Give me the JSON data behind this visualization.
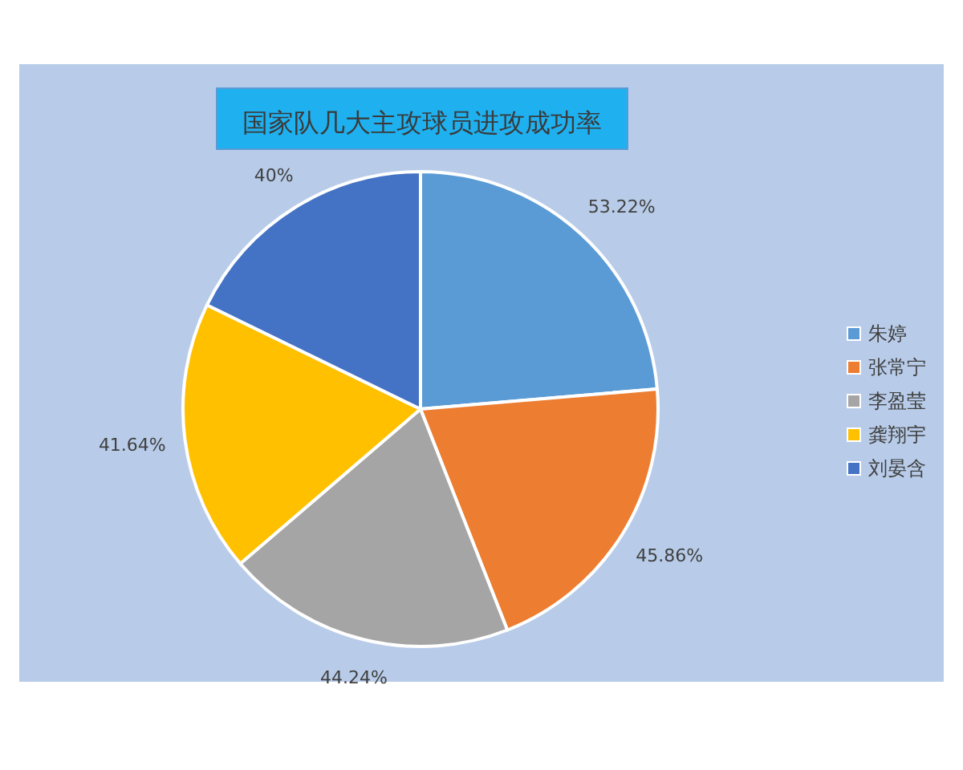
{
  "chart_data": {
    "type": "pie",
    "title": "国家队几大主攻球员进攻成功率",
    "categories": [
      "朱婷",
      "张常宁",
      "李盈莹",
      "龚翔宇",
      "刘晏含"
    ],
    "values": [
      53.22,
      45.86,
      44.24,
      41.64,
      40
    ],
    "value_labels": [
      "53.22%",
      "45.86%",
      "44.24%",
      "41.64%",
      "40%"
    ],
    "colors": [
      "#5b9bd5",
      "#ed7d31",
      "#a5a5a5",
      "#ffc000",
      "#4472c4"
    ],
    "legend": "right"
  }
}
